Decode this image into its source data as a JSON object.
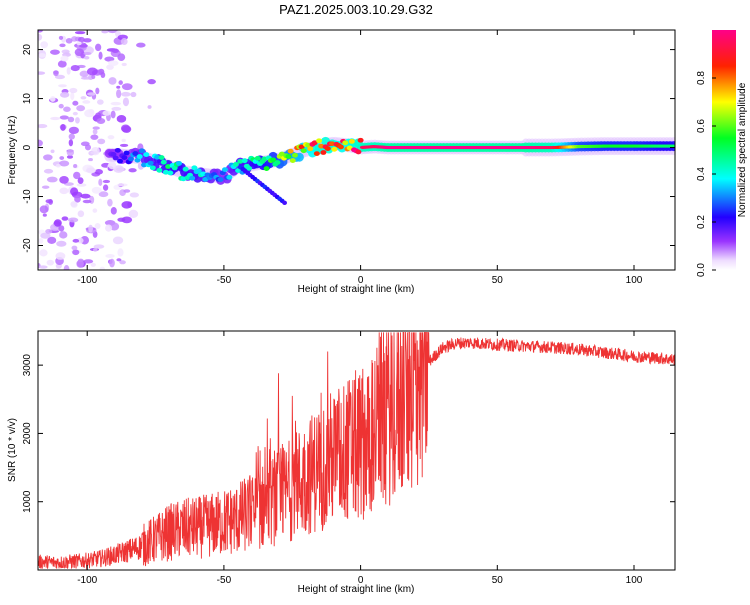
{
  "title": "PAZ1.2025.003.10.29.G32",
  "chart_data": [
    {
      "type": "heatmap",
      "xlabel": "Height of straight line (km)",
      "ylabel": "Frequency (Hz)",
      "xlim": [
        -118,
        115
      ],
      "ylim": [
        -25,
        24
      ],
      "xticks": [
        "-100",
        "-50",
        "0",
        "50",
        "100"
      ],
      "xtick_values": [
        -100,
        -50,
        0,
        50,
        100
      ],
      "yticks": [
        "-20",
        "-10",
        "0",
        "10",
        "20"
      ],
      "ytick_values": [
        -20,
        -10,
        0,
        10,
        20
      ],
      "colorbar": {
        "label": "Normalized spectral amplitude",
        "range": [
          0,
          1
        ],
        "ticks": [
          "0.0",
          "0.2",
          "0.4",
          "0.6",
          "0.8"
        ],
        "tick_values": [
          0.0,
          0.2,
          0.4,
          0.6,
          0.8
        ],
        "colormap": "rainbow (white-violet-blue-cyan-green-yellow-red-magenta)"
      },
      "ridge": {
        "x": [
          -90,
          -80,
          -72,
          -65,
          -58,
          -50,
          -45,
          -40,
          -35,
          -30,
          -25,
          -20,
          -15,
          -10,
          -5,
          0,
          5,
          10,
          20,
          30,
          40,
          50,
          60,
          70,
          80,
          90,
          100,
          110,
          115
        ],
        "y": [
          -1.5,
          -2,
          -3.5,
          -5,
          -5.5,
          -6,
          -4,
          -3.5,
          -3,
          -2.5,
          -1.5,
          -0.5,
          0.3,
          0.8,
          0.5,
          0,
          0.2,
          0,
          0,
          0,
          0,
          0,
          0,
          0,
          0.2,
          0.3,
          0.3,
          0.3,
          0.3
        ],
        "amplitude": [
          0.15,
          0.35,
          0.45,
          0.45,
          0.4,
          0.3,
          0.4,
          0.45,
          0.5,
          0.6,
          0.7,
          0.8,
          0.9,
          0.9,
          0.85,
          0.95,
          0.95,
          1.0,
          1.0,
          1.0,
          1.0,
          1.0,
          1.0,
          0.95,
          0.6,
          0.55,
          0.55,
          0.5,
          0.5
        ]
      },
      "scatter_band": {
        "x_range": [
          -118,
          -85
        ],
        "y_range": [
          -25,
          24
        ],
        "amplitude_range": [
          0.02,
          0.12
        ]
      },
      "grid": false
    },
    {
      "type": "line",
      "xlabel": "Height of straight line (km)",
      "ylabel": "SNR (10 * v/v)",
      "xlim": [
        -118,
        115
      ],
      "ylim": [
        0,
        3500
      ],
      "xticks": [
        "-100",
        "-50",
        "0",
        "50",
        "100"
      ],
      "xtick_values": [
        -100,
        -50,
        0,
        50,
        100
      ],
      "yticks": [
        "1000",
        "2000",
        "3000"
      ],
      "ytick_values": [
        1000,
        2000,
        3000
      ],
      "series": [
        {
          "color": "#ee3333",
          "x": [
            -118,
            -110,
            -100,
            -95,
            -90,
            -85,
            -80,
            -75,
            -70,
            -65,
            -60,
            -55,
            -50,
            -45,
            -40,
            -35,
            -30,
            -25,
            -20,
            -15,
            -10,
            -5,
            0,
            5,
            10,
            15,
            20,
            25,
            30,
            35,
            40,
            50,
            60,
            70,
            80,
            90,
            100,
            110,
            115
          ],
          "y": [
            120,
            110,
            140,
            170,
            220,
            280,
            350,
            450,
            550,
            600,
            620,
            650,
            700,
            750,
            850,
            950,
            1050,
            1200,
            1350,
            1500,
            1650,
            1750,
            1850,
            2050,
            2300,
            2550,
            2800,
            3050,
            3250,
            3320,
            3330,
            3300,
            3280,
            3260,
            3230,
            3180,
            3130,
            3100,
            3080
          ],
          "spikes": [
            [
              -30,
              2880
            ],
            [
              -12,
              3200
            ],
            [
              -25,
              2550
            ],
            [
              -35,
              1800
            ]
          ]
        }
      ],
      "grid": false
    }
  ]
}
